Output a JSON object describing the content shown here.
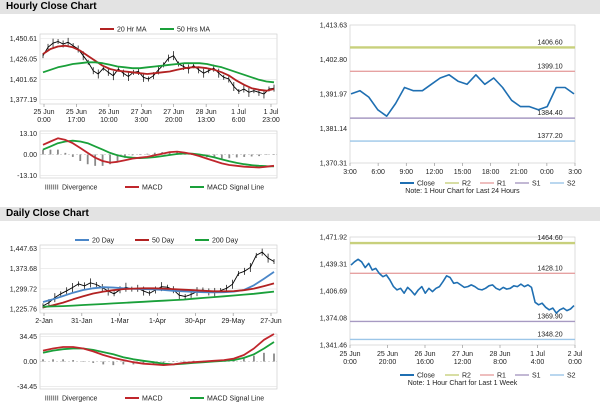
{
  "hourly_title": "Hourly Close Chart",
  "daily_title": "Daily Close Chart",
  "colors": {
    "price": "#000000",
    "ma_short": "#b22222",
    "ma_long": "#1aa03a",
    "ma_mid": "#4a86c8",
    "macd": "#c0262c",
    "signal": "#1aa03a",
    "divergence": "#8a8a8a",
    "close_line": "#1f6fb2",
    "r2": "#c8d07c",
    "r1": "#e6a2a2",
    "s1": "#a79ac2",
    "s2": "#9cc6e8"
  },
  "chart_data": [
    {
      "id": "hourly-price",
      "type": "line",
      "legend": [
        "20 Hr MA",
        "50 Hrs MA"
      ],
      "y_ticks": [
        "1,450.61",
        "1,426.05",
        "1,401.62",
        "1,377.19"
      ],
      "y_tick_values": [
        1450.61,
        1426.05,
        1401.62,
        1377.19
      ],
      "ylim": [
        1372,
        1456
      ],
      "x_ticks": [
        "25 Jun\n0:00",
        "25 Jun\n17:00",
        "26 Jun\n10:00",
        "27 Jun\n3:00",
        "27 Jun\n20:00",
        "28 Jun\n13:00",
        "1 Jul\n6:00",
        "1 Jul\n23:00"
      ],
      "price": [
        1430,
        1440,
        1445,
        1447,
        1444,
        1446,
        1442,
        1438,
        1430,
        1422,
        1412,
        1408,
        1415,
        1410,
        1406,
        1414,
        1409,
        1405,
        1410,
        1411,
        1404,
        1402,
        1406,
        1413,
        1419,
        1427,
        1430,
        1420,
        1417,
        1414,
        1418,
        1413,
        1409,
        1412,
        1415,
        1409,
        1404,
        1402,
        1393,
        1387,
        1390,
        1386,
        1388,
        1386,
        1384,
        1390,
        1391
      ],
      "series": [
        {
          "name": "20 Hr MA",
          "values": [
            1432,
            1438,
            1441,
            1442,
            1440,
            1436,
            1430,
            1424,
            1418,
            1414,
            1412,
            1411,
            1410,
            1409,
            1408,
            1409,
            1410,
            1411,
            1413,
            1415,
            1416,
            1416,
            1415,
            1413,
            1410,
            1406,
            1400,
            1395,
            1391,
            1389,
            1388,
            1390
          ]
        },
        {
          "name": "50 Hrs MA",
          "values": [
            1410,
            1413,
            1416,
            1418,
            1420,
            1421,
            1422,
            1422,
            1421,
            1419,
            1417,
            1416,
            1415,
            1415,
            1416,
            1417,
            1418,
            1419,
            1420,
            1421,
            1421,
            1421,
            1420,
            1418,
            1416,
            1413,
            1410,
            1407,
            1404,
            1401,
            1399,
            1398
          ]
        }
      ]
    },
    {
      "id": "hourly-macd",
      "type": "line",
      "legend": [
        "Divergence",
        "MACD",
        "MACD Signal Line"
      ],
      "y_ticks": [
        "13.10",
        "0.00",
        "-13.10"
      ],
      "y_tick_values": [
        13.1,
        0,
        -13.1
      ],
      "ylim": [
        -14.5,
        14.5
      ],
      "series": [
        {
          "name": "MACD",
          "values": [
            6,
            8,
            10,
            9,
            7,
            4,
            1,
            -2,
            -4,
            -5,
            -4.5,
            -3.5,
            -2.5,
            -2,
            -1.5,
            -0.5,
            0.5,
            1.5,
            1.8,
            1.2,
            0.3,
            -1,
            -2.5,
            -4,
            -5.5,
            -6.5,
            -7,
            -7.5,
            -7.8,
            -8,
            -7.5,
            -7
          ]
        },
        {
          "name": "MACD Signal Line",
          "values": [
            3,
            5,
            7,
            8,
            8.5,
            8,
            7,
            5,
            3,
            1,
            -0.5,
            -1.5,
            -2,
            -2.2,
            -2,
            -1.6,
            -1,
            -0.3,
            0.3,
            0.6,
            0.5,
            0,
            -0.8,
            -1.8,
            -3,
            -4.2,
            -5.2,
            -6,
            -6.6,
            -7,
            -7.2,
            -7.3
          ]
        },
        {
          "name": "Divergence",
          "values": [
            3,
            3,
            3,
            1,
            -1.5,
            -4,
            -6,
            -7,
            -7,
            -6,
            -4,
            -2,
            -0.5,
            0.2,
            0.5,
            1.1,
            1.5,
            1.8,
            1.5,
            0.6,
            -0.2,
            -1,
            -1.7,
            -2.2,
            -2.5,
            -2.3,
            -1.8,
            -1.5,
            -1.2,
            -1,
            -0.3,
            0.3
          ]
        }
      ]
    },
    {
      "id": "hourly-levels",
      "type": "line",
      "legend": [
        "Close",
        "R2",
        "R1",
        "S1",
        "S2"
      ],
      "note": "Note: 1 Hour Chart for Last 24 Hours",
      "y_ticks": [
        "1,413.63",
        "1,402.80",
        "1,391.97",
        "1,381.14",
        "1,370.31"
      ],
      "y_tick_values": [
        1413.63,
        1402.8,
        1391.97,
        1381.14,
        1370.31
      ],
      "ylim": [
        1370.31,
        1413.63
      ],
      "x_ticks": [
        "3:00",
        "6:00",
        "9:00",
        "12:00",
        "15:00",
        "18:00",
        "21:00",
        "0:00",
        "3:00"
      ],
      "levels": [
        {
          "name": "R2",
          "value": 1406.6,
          "label": "1406.60"
        },
        {
          "name": "R1",
          "value": 1399.1,
          "label": "1399.10"
        },
        {
          "name": "S1",
          "value": 1384.4,
          "label": "1384.40"
        },
        {
          "name": "S2",
          "value": 1377.2,
          "label": "1377.20"
        }
      ],
      "close": [
        1392,
        1393,
        1391,
        1387,
        1385,
        1389,
        1394,
        1393,
        1393,
        1395,
        1397,
        1398,
        1396,
        1395,
        1398,
        1395,
        1397,
        1394,
        1390,
        1388,
        1388,
        1387,
        1388,
        1394,
        1394,
        1392
      ]
    },
    {
      "id": "daily-price",
      "type": "line",
      "legend": [
        "20 Day",
        "50 Day",
        "200 Day"
      ],
      "y_ticks": [
        "1,447.63",
        "1,373.68",
        "1,299.72",
        "1,225.76"
      ],
      "y_tick_values": [
        1447.63,
        1373.68,
        1299.72,
        1225.76
      ],
      "ylim": [
        1212,
        1460
      ],
      "x_ticks": [
        "2-Jan",
        "31-Jan",
        "1-Mar",
        "1-Apr",
        "30-Apr",
        "29-May",
        "27-Jun"
      ],
      "price": [
        1238,
        1250,
        1268,
        1282,
        1293,
        1305,
        1318,
        1311,
        1322,
        1316,
        1305,
        1292,
        1282,
        1297,
        1306,
        1299,
        1302,
        1292,
        1284,
        1296,
        1308,
        1306,
        1297,
        1277,
        1272,
        1280,
        1290,
        1296,
        1289,
        1287,
        1294,
        1302,
        1317,
        1356,
        1364,
        1378,
        1422,
        1434,
        1412,
        1400
      ],
      "series": [
        {
          "name": "20 Day",
          "values": [
            1252,
            1262,
            1274,
            1286,
            1296,
            1302,
            1306,
            1305,
            1302,
            1300,
            1299,
            1298,
            1296,
            1293,
            1291,
            1289,
            1288,
            1287,
            1288,
            1290,
            1296,
            1313,
            1337,
            1362
          ]
        },
        {
          "name": "50 Day",
          "values": [
            1232,
            1240,
            1250,
            1262,
            1273,
            1283,
            1290,
            1295,
            1299,
            1301,
            1302,
            1302,
            1301,
            1299,
            1297,
            1295,
            1293,
            1291,
            1291,
            1292,
            1295,
            1301,
            1310,
            1320
          ]
        },
        {
          "name": "200 Day",
          "values": [
            1235,
            1236,
            1237,
            1239,
            1241,
            1243,
            1245,
            1247,
            1249,
            1251,
            1253,
            1255,
            1257,
            1259,
            1261,
            1264,
            1267,
            1270,
            1273,
            1276,
            1279,
            1282,
            1286,
            1290
          ]
        }
      ]
    },
    {
      "id": "daily-macd",
      "type": "line",
      "legend": [
        "Divergence",
        "MACD",
        "MACD Signal Line"
      ],
      "y_ticks": [
        "34.45",
        "0.00",
        "-34.45"
      ],
      "y_tick_values": [
        34.45,
        0,
        -34.45
      ],
      "ylim": [
        -38,
        38
      ],
      "series": [
        {
          "name": "MACD",
          "values": [
            15,
            18,
            20,
            20,
            18,
            14,
            9,
            5,
            2,
            -1,
            -3,
            -4,
            -5,
            -4,
            -2,
            -1,
            0,
            1,
            2,
            4,
            9,
            18,
            30,
            38
          ]
        },
        {
          "name": "MACD Signal Line",
          "values": [
            12,
            15,
            17,
            18,
            18,
            16,
            13,
            10,
            6,
            3,
            1,
            -1,
            -3,
            -4,
            -3,
            -2,
            -1,
            0,
            1,
            2,
            5,
            10,
            18,
            27
          ]
        },
        {
          "name": "Divergence",
          "values": [
            3,
            3,
            3,
            2,
            0,
            -2,
            -4,
            -5,
            -4,
            -4,
            -4,
            -3,
            -2,
            0,
            1,
            1,
            1,
            1,
            1,
            2,
            4,
            8,
            12,
            11
          ]
        }
      ]
    },
    {
      "id": "daily-levels",
      "type": "line",
      "legend": [
        "Close",
        "R2",
        "R1",
        "S1",
        "S2"
      ],
      "note": "Note: 1 Hour Chart for Last 1 Week",
      "y_ticks": [
        "1,471.92",
        "1,439.31",
        "1,406.69",
        "1,374.08",
        "1,341.46"
      ],
      "y_tick_values": [
        1471.92,
        1439.31,
        1406.69,
        1374.08,
        1341.46
      ],
      "ylim": [
        1341.46,
        1471.92
      ],
      "x_ticks": [
        "25 Jun\n0:00",
        "25 Jun\n20:00",
        "26 Jun\n16:00",
        "27 Jun\n12:00",
        "28 Jun\n8:00",
        "1 Jul\n4:00",
        "2 Jul\n0:00"
      ],
      "levels": [
        {
          "name": "R2",
          "value": 1464.6,
          "label": "1464.60"
        },
        {
          "name": "R1",
          "value": 1428.1,
          "label": "1428.10"
        },
        {
          "name": "S1",
          "value": 1369.9,
          "label": "1369.90"
        },
        {
          "name": "S2",
          "value": 1348.2,
          "label": "1348.20"
        }
      ],
      "close": [
        1438,
        1442,
        1445,
        1442,
        1435,
        1440,
        1432,
        1434,
        1428,
        1424,
        1426,
        1420,
        1412,
        1408,
        1410,
        1404,
        1411,
        1407,
        1402,
        1408,
        1412,
        1404,
        1410,
        1406,
        1410,
        1412,
        1418,
        1425,
        1423,
        1416,
        1417,
        1414,
        1411,
        1412,
        1414,
        1412,
        1409,
        1408,
        1410,
        1413,
        1414,
        1410,
        1408,
        1411,
        1409,
        1410,
        1413,
        1412,
        1415,
        1412,
        1414,
        1411,
        1393,
        1390,
        1392,
        1387,
        1384,
        1386,
        1380,
        1384,
        1386,
        1383,
        1385,
        1389
      ]
    }
  ]
}
